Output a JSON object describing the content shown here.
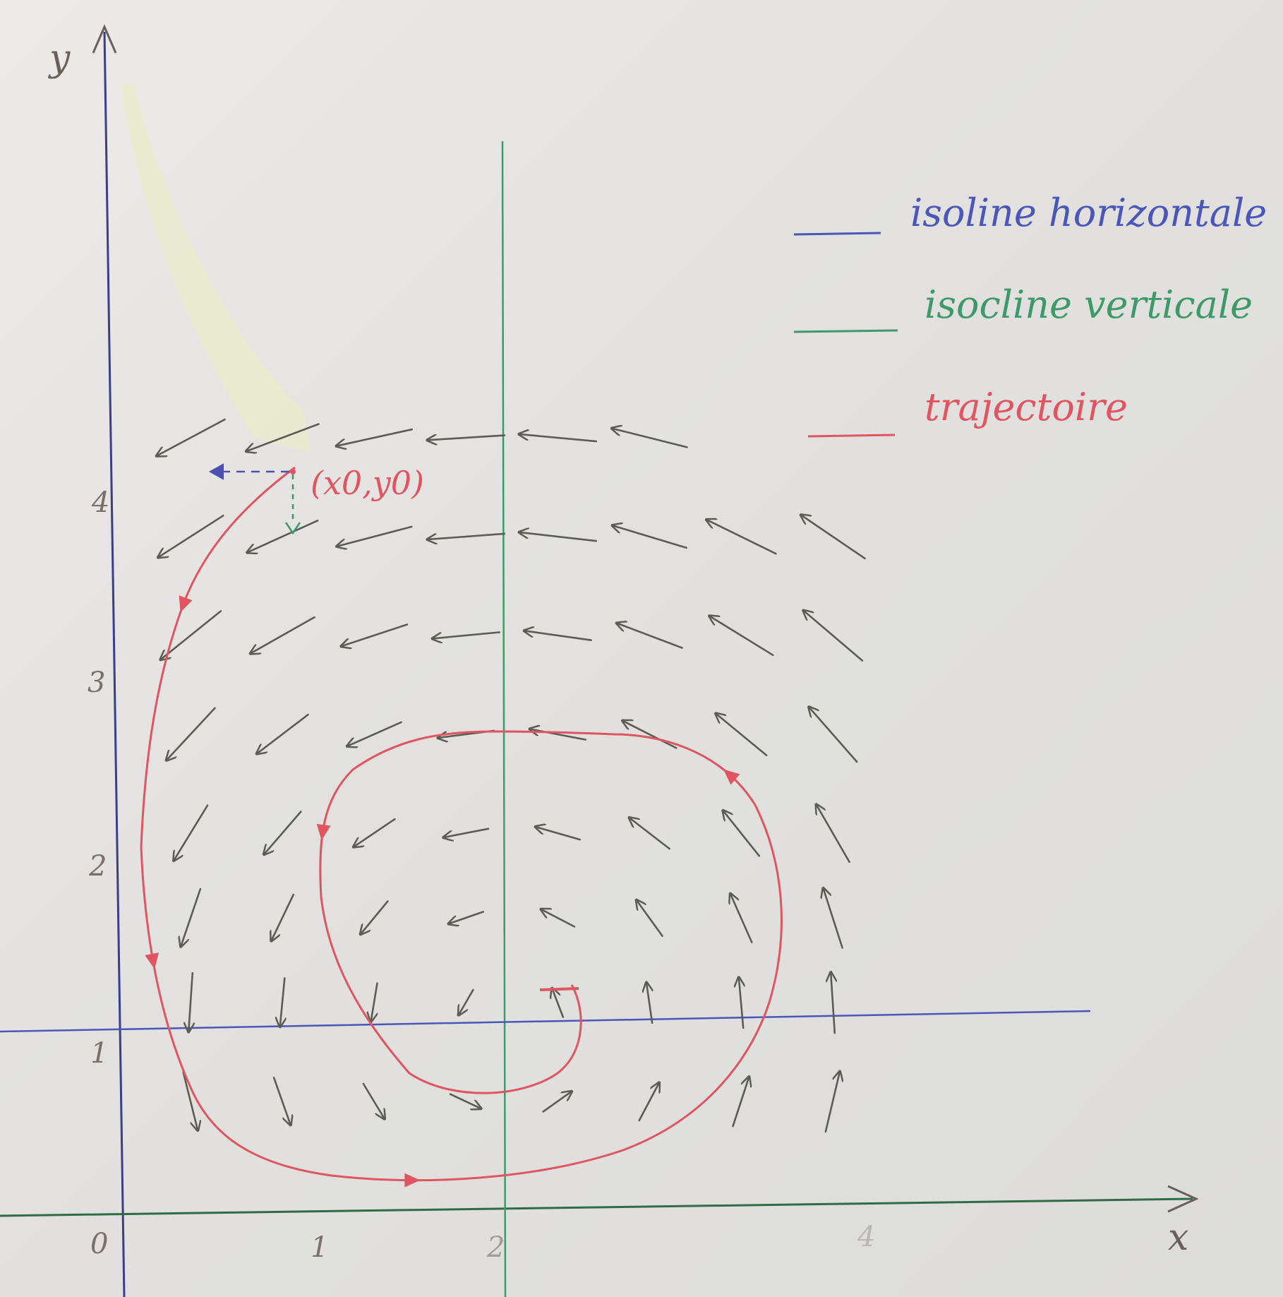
{
  "axes": {
    "x_name": "x",
    "y_name": "y",
    "origin_label": "0",
    "x_ticks": [
      "1",
      "2",
      "4"
    ],
    "y_ticks": [
      "1",
      "2",
      "3",
      "4"
    ]
  },
  "legend": [
    {
      "label": "isoline horizontale",
      "color": "#4a56b8"
    },
    {
      "label": "isocline verticale",
      "color": "#3f9a6a"
    },
    {
      "label": "trajectoire",
      "color": "#e05560"
    }
  ],
  "point_label": "(x0,y0)",
  "colors": {
    "axis": "#3a3f8a",
    "x_axis": "#2f6b46",
    "arrows": "#5b5d55",
    "trajectory": "#e05560",
    "horizontal_isoline": "#4a56b8",
    "vertical_isocline": "#3f9a6a"
  }
}
